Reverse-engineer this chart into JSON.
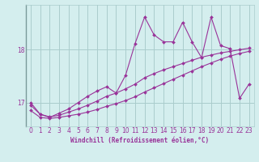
{
  "xlabel": "Windchill (Refroidissement éolien,°C)",
  "bg_color": "#d4eeee",
  "grid_color": "#aacccc",
  "line_color": "#993399",
  "xlim": [
    -0.5,
    23.5
  ],
  "ylim": [
    16.55,
    18.85
  ],
  "yticks": [
    17,
    18
  ],
  "xticks": [
    0,
    1,
    2,
    3,
    4,
    5,
    6,
    7,
    8,
    9,
    10,
    11,
    12,
    13,
    14,
    15,
    16,
    17,
    18,
    19,
    20,
    21,
    22,
    23
  ],
  "series1_x": [
    0,
    1,
    2,
    3,
    4,
    5,
    6,
    7,
    8,
    9,
    10,
    11,
    12,
    13,
    14,
    15,
    16,
    17,
    18,
    19,
    20,
    21,
    22,
    23
  ],
  "series1_y": [
    16.85,
    16.72,
    16.7,
    16.72,
    16.75,
    16.78,
    16.82,
    16.87,
    16.93,
    16.98,
    17.04,
    17.11,
    17.2,
    17.28,
    17.36,
    17.44,
    17.52,
    17.6,
    17.68,
    17.75,
    17.82,
    17.88,
    17.93,
    17.97
  ],
  "series2_x": [
    0,
    1,
    2,
    3,
    4,
    5,
    6,
    7,
    8,
    9,
    10,
    11,
    12,
    13,
    14,
    15,
    16,
    17,
    18,
    19,
    20,
    21,
    22,
    23
  ],
  "series2_y": [
    16.95,
    16.78,
    16.73,
    16.76,
    16.82,
    16.88,
    16.95,
    17.03,
    17.12,
    17.18,
    17.26,
    17.35,
    17.47,
    17.55,
    17.62,
    17.68,
    17.74,
    17.8,
    17.86,
    17.9,
    17.94,
    17.97,
    18.0,
    18.03
  ],
  "series3_x": [
    0,
    1,
    2,
    3,
    4,
    5,
    6,
    7,
    8,
    9,
    10,
    11,
    12,
    13,
    14,
    15,
    16,
    17,
    18,
    19,
    20,
    21,
    22,
    23
  ],
  "series3_y": [
    17.0,
    16.78,
    16.72,
    16.8,
    16.88,
    17.0,
    17.12,
    17.22,
    17.3,
    17.18,
    17.52,
    18.12,
    18.62,
    18.28,
    18.15,
    18.15,
    18.52,
    18.15,
    17.85,
    18.62,
    18.08,
    18.02,
    17.08,
    17.35
  ]
}
